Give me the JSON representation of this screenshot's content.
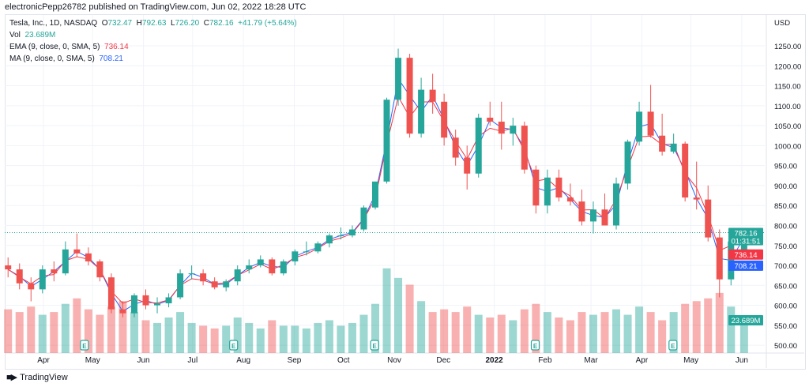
{
  "publisher_line": "electronicPepp26782 published on TradingView.com, Jun 02, 2022 18:28 UTC",
  "legend": {
    "symbol": "Tesla, Inc., 1D, NASDAQ",
    "o_label": "O",
    "open": "732.47",
    "h_label": "H",
    "high": "792.63",
    "l_label": "L",
    "low": "726.20",
    "c_label": "C",
    "close": "782.16",
    "change": "+41.79 (+5.64%)",
    "vol_label": "Vol",
    "vol": "23.689M",
    "ema_label": "EMA (9, close, 0, SMA, 5)",
    "ema": "736.14",
    "ma_label": "MA (9, close, 0, SMA, 5)",
    "ma": "708.21"
  },
  "currency": "USD",
  "tags": {
    "last_price": "782.16",
    "countdown": "01:31:51",
    "ema": "736.14",
    "ma": "708.21",
    "volume": "23.689M"
  },
  "colors": {
    "up": "#26a69a",
    "down": "#ef5350",
    "ema": "#f23645",
    "ma": "#2962ff"
  },
  "branding": "TradingView",
  "chart_data": {
    "type": "candlestick",
    "title": "Tesla, Inc., 1D, NASDAQ",
    "ylim": [
      480,
      1270
    ],
    "y_ticks": [
      "1250.00",
      "1200.00",
      "1150.00",
      "1100.00",
      "1050.00",
      "1000.00",
      "950.00",
      "900.00",
      "850.00",
      "800.00",
      "750.00",
      "700.00",
      "650.00",
      "600.00",
      "550.00",
      "500.00"
    ],
    "x_ticks": [
      {
        "label": "Apr",
        "date": "2021-04-01"
      },
      {
        "label": "May",
        "date": "2021-05-01"
      },
      {
        "label": "Jun",
        "date": "2021-06-01"
      },
      {
        "label": "Jul",
        "date": "2021-07-01"
      },
      {
        "label": "Aug",
        "date": "2021-08-01"
      },
      {
        "label": "Sep",
        "date": "2021-09-01"
      },
      {
        "label": "Oct",
        "date": "2021-10-01"
      },
      {
        "label": "Nov",
        "date": "2021-11-01"
      },
      {
        "label": "Dec",
        "date": "2021-12-01"
      },
      {
        "label": "2022",
        "date": "2022-01-01"
      },
      {
        "label": "Feb",
        "date": "2022-02-01"
      },
      {
        "label": "Mar",
        "date": "2022-03-01"
      },
      {
        "label": "Apr",
        "date": "2022-04-01"
      },
      {
        "label": "May",
        "date": "2022-05-01"
      },
      {
        "label": "Jun",
        "date": "2022-06-01"
      }
    ],
    "grid": true,
    "dates": [
      "2021-03-08",
      "2021-03-15",
      "2021-03-22",
      "2021-03-29",
      "2021-04-05",
      "2021-04-12",
      "2021-04-19",
      "2021-04-26",
      "2021-05-03",
      "2021-05-10",
      "2021-05-17",
      "2021-05-24",
      "2021-05-31",
      "2021-06-07",
      "2021-06-14",
      "2021-06-21",
      "2021-06-28",
      "2021-07-05",
      "2021-07-12",
      "2021-07-19",
      "2021-07-26",
      "2021-08-02",
      "2021-08-09",
      "2021-08-16",
      "2021-08-23",
      "2021-08-30",
      "2021-09-06",
      "2021-09-13",
      "2021-09-20",
      "2021-09-27",
      "2021-10-04",
      "2021-10-11",
      "2021-10-18",
      "2021-10-25",
      "2021-11-01",
      "2021-11-08",
      "2021-11-15",
      "2021-11-22",
      "2021-11-29",
      "2021-12-06",
      "2021-12-13",
      "2021-12-20",
      "2021-12-27",
      "2022-01-03",
      "2022-01-10",
      "2022-01-17",
      "2022-01-24",
      "2022-01-31",
      "2022-02-07",
      "2022-02-14",
      "2022-02-21",
      "2022-02-28",
      "2022-03-07",
      "2022-03-14",
      "2022-03-21",
      "2022-03-28",
      "2022-04-04",
      "2022-04-11",
      "2022-04-18",
      "2022-04-25",
      "2022-05-02",
      "2022-05-09",
      "2022-05-16",
      "2022-05-23",
      "2022-05-31"
    ],
    "open": [
      700,
      690,
      655,
      640,
      690,
      680,
      740,
      730,
      710,
      670,
      590,
      580,
      625,
      600,
      605,
      620,
      680,
      680,
      660,
      645,
      660,
      690,
      700,
      715,
      680,
      710,
      735,
      735,
      755,
      775,
      775,
      790,
      845,
      910,
      1115,
      1220,
      1030,
      1140,
      1110,
      1020,
      970,
      930,
      1070,
      1060,
      1030,
      1050,
      940,
      850,
      920,
      870,
      860,
      810,
      840,
      800,
      905,
      1010,
      1085,
      1025,
      985,
      1005,
      870,
      865,
      770,
      665,
      732.47
    ],
    "high": [
      720,
      705,
      670,
      700,
      710,
      760,
      780,
      745,
      715,
      680,
      610,
      630,
      640,
      620,
      630,
      690,
      700,
      690,
      670,
      665,
      700,
      715,
      725,
      720,
      715,
      740,
      760,
      760,
      780,
      795,
      800,
      850,
      910,
      1120,
      1243,
      1230,
      1170,
      1180,
      1130,
      1040,
      1000,
      1080,
      1110,
      1110,
      1070,
      1060,
      950,
      940,
      940,
      905,
      890,
      860,
      880,
      920,
      1015,
      1110,
      1152,
      1080,
      1030,
      1010,
      960,
      900,
      790,
      770,
      792.63
    ],
    "low": [
      670,
      640,
      610,
      630,
      660,
      675,
      720,
      700,
      660,
      580,
      570,
      570,
      590,
      580,
      595,
      615,
      665,
      650,
      640,
      635,
      650,
      680,
      695,
      675,
      675,
      700,
      725,
      730,
      745,
      765,
      770,
      785,
      840,
      905,
      1100,
      1020,
      1020,
      1080,
      1000,
      950,
      890,
      920,
      1050,
      990,
      1000,
      930,
      830,
      830,
      860,
      850,
      800,
      780,
      800,
      790,
      890,
      1000,
      1020,
      975,
      980,
      860,
      840,
      760,
      620,
      650,
      726.2
    ],
    "close": [
      690,
      655,
      640,
      690,
      680,
      740,
      730,
      710,
      670,
      590,
      580,
      625,
      600,
      605,
      620,
      680,
      680,
      660,
      645,
      660,
      690,
      700,
      715,
      680,
      710,
      735,
      735,
      755,
      775,
      775,
      790,
      845,
      910,
      1115,
      1220,
      1030,
      1140,
      1110,
      1020,
      970,
      930,
      1070,
      1060,
      1030,
      1050,
      940,
      850,
      920,
      870,
      860,
      810,
      840,
      800,
      905,
      1010,
      1085,
      1025,
      985,
      1005,
      870,
      865,
      770,
      665,
      760,
      782.16
    ],
    "volume_millions": [
      32,
      30,
      34,
      28,
      30,
      36,
      40,
      32,
      28,
      34,
      38,
      30,
      24,
      22,
      26,
      30,
      22,
      20,
      18,
      20,
      26,
      22,
      18,
      24,
      20,
      20,
      18,
      22,
      24,
      20,
      22,
      28,
      36,
      62,
      55,
      50,
      38,
      30,
      32,
      30,
      34,
      28,
      26,
      28,
      24,
      32,
      36,
      30,
      26,
      24,
      30,
      28,
      30,
      32,
      28,
      34,
      30,
      24,
      30,
      36,
      38,
      40,
      44,
      34,
      23.689
    ],
    "earnings_markers": [
      {
        "label": "E",
        "date": "2021-04-26"
      },
      {
        "label": "E",
        "date": "2021-07-26"
      },
      {
        "label": "E",
        "date": "2021-10-20"
      },
      {
        "label": "E",
        "date": "2022-01-26"
      },
      {
        "label": "E",
        "date": "2022-04-20"
      }
    ],
    "series": [
      {
        "name": "EMA (9, close, 0, SMA, 5)",
        "last": 736.14
      },
      {
        "name": "MA (9, close, 0, SMA, 5)",
        "last": 708.21
      }
    ]
  }
}
